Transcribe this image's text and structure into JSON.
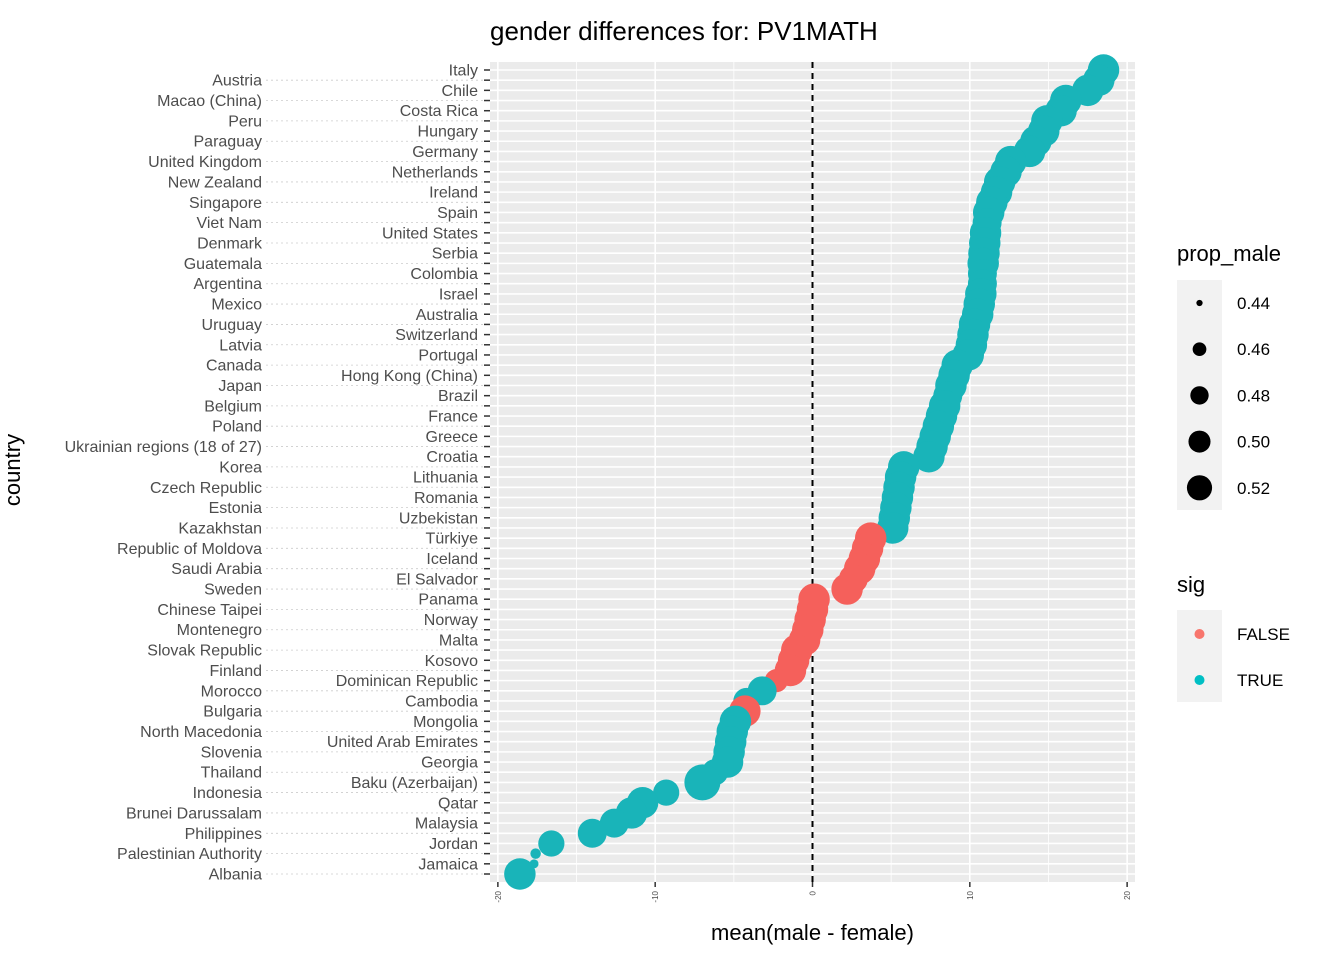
{
  "chart_data": {
    "type": "scatter",
    "title": "gender differences for: PV1MATH",
    "xlabel": "mean(male - female)",
    "ylabel": "country",
    "xlim": [
      -20.5,
      20.5
    ],
    "x_ticks": [
      "-20",
      "-10",
      "0",
      "10",
      "20"
    ],
    "x_tick_values": [
      -20,
      -10,
      0,
      10,
      20
    ],
    "reference_line": {
      "x": 0,
      "style": "dashed"
    },
    "grid": true,
    "legend_position": "right",
    "legends": {
      "size": {
        "title": "prop_male",
        "entries": [
          "0.44",
          "0.46",
          "0.48",
          "0.50",
          "0.52"
        ],
        "values": [
          0.44,
          0.46,
          0.48,
          0.5,
          0.52
        ]
      },
      "color": {
        "title": "sig",
        "entries": [
          {
            "label": "FALSE",
            "color": "#F8766D"
          },
          {
            "label": "TRUE",
            "color": "#00BFC4"
          }
        ]
      }
    },
    "colors": {
      "FALSE": "#F5605B",
      "TRUE": "#19B4B9"
    },
    "points": [
      {
        "country": "Italy",
        "diff": 18.5,
        "sig": true,
        "prop_male": 0.5
      },
      {
        "country": "Austria",
        "diff": 18.2,
        "sig": true,
        "prop_male": 0.5
      },
      {
        "country": "Chile",
        "diff": 17.5,
        "sig": true,
        "prop_male": 0.5
      },
      {
        "country": "Macao (China)",
        "diff": 16.1,
        "sig": true,
        "prop_male": 0.5
      },
      {
        "country": "Costa Rica",
        "diff": 15.8,
        "sig": true,
        "prop_male": 0.5
      },
      {
        "country": "Peru",
        "diff": 14.9,
        "sig": true,
        "prop_male": 0.5
      },
      {
        "country": "Hungary",
        "diff": 14.7,
        "sig": true,
        "prop_male": 0.5
      },
      {
        "country": "Paraguay",
        "diff": 14.2,
        "sig": true,
        "prop_male": 0.5
      },
      {
        "country": "Germany",
        "diff": 13.8,
        "sig": true,
        "prop_male": 0.5
      },
      {
        "country": "United Kingdom",
        "diff": 12.6,
        "sig": true,
        "prop_male": 0.5
      },
      {
        "country": "Netherlands",
        "diff": 12.3,
        "sig": true,
        "prop_male": 0.5
      },
      {
        "country": "New Zealand",
        "diff": 11.9,
        "sig": true,
        "prop_male": 0.5
      },
      {
        "country": "Ireland",
        "diff": 11.7,
        "sig": true,
        "prop_male": 0.5
      },
      {
        "country": "Singapore",
        "diff": 11.4,
        "sig": true,
        "prop_male": 0.5
      },
      {
        "country": "Spain",
        "diff": 11.2,
        "sig": true,
        "prop_male": 0.5
      },
      {
        "country": "Viet Nam",
        "diff": 11.1,
        "sig": true,
        "prop_male": 0.49
      },
      {
        "country": "United States",
        "diff": 11.0,
        "sig": true,
        "prop_male": 0.5
      },
      {
        "country": "Denmark",
        "diff": 10.95,
        "sig": true,
        "prop_male": 0.5
      },
      {
        "country": "Serbia",
        "diff": 10.9,
        "sig": true,
        "prop_male": 0.5
      },
      {
        "country": "Guatemala",
        "diff": 10.85,
        "sig": true,
        "prop_male": 0.5
      },
      {
        "country": "Colombia",
        "diff": 10.8,
        "sig": true,
        "prop_male": 0.49
      },
      {
        "country": "Argentina",
        "diff": 10.8,
        "sig": true,
        "prop_male": 0.49
      },
      {
        "country": "Israel",
        "diff": 10.7,
        "sig": true,
        "prop_male": 0.5
      },
      {
        "country": "Mexico",
        "diff": 10.6,
        "sig": true,
        "prop_male": 0.5
      },
      {
        "country": "Australia",
        "diff": 10.5,
        "sig": true,
        "prop_male": 0.5
      },
      {
        "country": "Uruguay",
        "diff": 10.3,
        "sig": true,
        "prop_male": 0.5
      },
      {
        "country": "Switzerland",
        "diff": 10.2,
        "sig": true,
        "prop_male": 0.5
      },
      {
        "country": "Latvia",
        "diff": 10.1,
        "sig": true,
        "prop_male": 0.5
      },
      {
        "country": "Portugal",
        "diff": 9.9,
        "sig": true,
        "prop_male": 0.5
      },
      {
        "country": "Canada",
        "diff": 9.2,
        "sig": true,
        "prop_male": 0.5
      },
      {
        "country": "Hong Kong (China)",
        "diff": 9.0,
        "sig": true,
        "prop_male": 0.5
      },
      {
        "country": "Japan",
        "diff": 8.8,
        "sig": true,
        "prop_male": 0.5
      },
      {
        "country": "Brazil",
        "diff": 8.6,
        "sig": true,
        "prop_male": 0.49
      },
      {
        "country": "Belgium",
        "diff": 8.4,
        "sig": true,
        "prop_male": 0.5
      },
      {
        "country": "France",
        "diff": 8.2,
        "sig": true,
        "prop_male": 0.5
      },
      {
        "country": "Poland",
        "diff": 8.0,
        "sig": true,
        "prop_male": 0.5
      },
      {
        "country": "Greece",
        "diff": 7.8,
        "sig": true,
        "prop_male": 0.5
      },
      {
        "country": "Ukrainian regions (18 of 27)",
        "diff": 7.6,
        "sig": true,
        "prop_male": 0.5
      },
      {
        "country": "Croatia",
        "diff": 7.4,
        "sig": true,
        "prop_male": 0.5
      },
      {
        "country": "Korea",
        "diff": 5.8,
        "sig": true,
        "prop_male": 0.5
      },
      {
        "country": "Lithuania",
        "diff": 5.6,
        "sig": true,
        "prop_male": 0.5
      },
      {
        "country": "Czech Republic",
        "diff": 5.5,
        "sig": true,
        "prop_male": 0.5
      },
      {
        "country": "Romania",
        "diff": 5.4,
        "sig": true,
        "prop_male": 0.5
      },
      {
        "country": "Estonia",
        "diff": 5.3,
        "sig": true,
        "prop_male": 0.5
      },
      {
        "country": "Uzbekistan",
        "diff": 5.2,
        "sig": true,
        "prop_male": 0.5
      },
      {
        "country": "Kazakhstan",
        "diff": 5.1,
        "sig": true,
        "prop_male": 0.5
      },
      {
        "country": "Türkiye",
        "diff": 3.7,
        "sig": false,
        "prop_male": 0.5
      },
      {
        "country": "Republic of Moldova",
        "diff": 3.5,
        "sig": false,
        "prop_male": 0.5
      },
      {
        "country": "Iceland",
        "diff": 3.3,
        "sig": false,
        "prop_male": 0.5
      },
      {
        "country": "Saudi Arabia",
        "diff": 3.0,
        "sig": false,
        "prop_male": 0.5
      },
      {
        "country": "El Salvador",
        "diff": 2.6,
        "sig": false,
        "prop_male": 0.49
      },
      {
        "country": "Sweden",
        "diff": 2.2,
        "sig": false,
        "prop_male": 0.5
      },
      {
        "country": "Panama",
        "diff": 0.1,
        "sig": false,
        "prop_male": 0.5
      },
      {
        "country": "Chinese Taipei",
        "diff": 0.0,
        "sig": false,
        "prop_male": 0.5
      },
      {
        "country": "Norway",
        "diff": -0.15,
        "sig": false,
        "prop_male": 0.5
      },
      {
        "country": "Montenegro",
        "diff": -0.3,
        "sig": false,
        "prop_male": 0.5
      },
      {
        "country": "Malta",
        "diff": -0.5,
        "sig": false,
        "prop_male": 0.5
      },
      {
        "country": "Slovak Republic",
        "diff": -1.0,
        "sig": false,
        "prop_male": 0.5
      },
      {
        "country": "Kosovo",
        "diff": -1.2,
        "sig": false,
        "prop_male": 0.5
      },
      {
        "country": "Finland",
        "diff": -1.4,
        "sig": false,
        "prop_male": 0.5
      },
      {
        "country": "Dominican Republic",
        "diff": -2.3,
        "sig": false,
        "prop_male": 0.47
      },
      {
        "country": "Morocco",
        "diff": -3.2,
        "sig": true,
        "prop_male": 0.49
      },
      {
        "country": "Cambodia",
        "diff": -4.2,
        "sig": true,
        "prop_male": 0.48
      },
      {
        "country": "Bulgaria",
        "diff": -4.3,
        "sig": false,
        "prop_male": 0.5
      },
      {
        "country": "Mongolia",
        "diff": -4.9,
        "sig": true,
        "prop_male": 0.5
      },
      {
        "country": "North Macedonia",
        "diff": -5.1,
        "sig": true,
        "prop_male": 0.5
      },
      {
        "country": "United Arab Emirates",
        "diff": -5.2,
        "sig": true,
        "prop_male": 0.5
      },
      {
        "country": "Slovenia",
        "diff": -5.3,
        "sig": true,
        "prop_male": 0.5
      },
      {
        "country": "Georgia",
        "diff": -5.4,
        "sig": true,
        "prop_male": 0.5
      },
      {
        "country": "Thailand",
        "diff": -6.2,
        "sig": true,
        "prop_male": 0.48
      },
      {
        "country": "Baku (Azerbaijan)",
        "diff": -7.0,
        "sig": true,
        "prop_male": 0.52
      },
      {
        "country": "Indonesia",
        "diff": -9.3,
        "sig": true,
        "prop_male": 0.48
      },
      {
        "country": "Qatar",
        "diff": -10.8,
        "sig": true,
        "prop_male": 0.5
      },
      {
        "country": "Brunei Darussalam",
        "diff": -11.5,
        "sig": true,
        "prop_male": 0.5
      },
      {
        "country": "Malaysia",
        "diff": -12.6,
        "sig": true,
        "prop_male": 0.49
      },
      {
        "country": "Philippines",
        "diff": -14.0,
        "sig": true,
        "prop_male": 0.49
      },
      {
        "country": "Jordan",
        "diff": -16.6,
        "sig": true,
        "prop_male": 0.48
      },
      {
        "country": "Palestinian Authority",
        "diff": -17.6,
        "sig": true,
        "prop_male": 0.442
      },
      {
        "country": "Jamaica",
        "diff": -17.7,
        "sig": true,
        "prop_male": 0.44
      },
      {
        "country": "Albania",
        "diff": -18.6,
        "sig": true,
        "prop_male": 0.5
      }
    ]
  }
}
